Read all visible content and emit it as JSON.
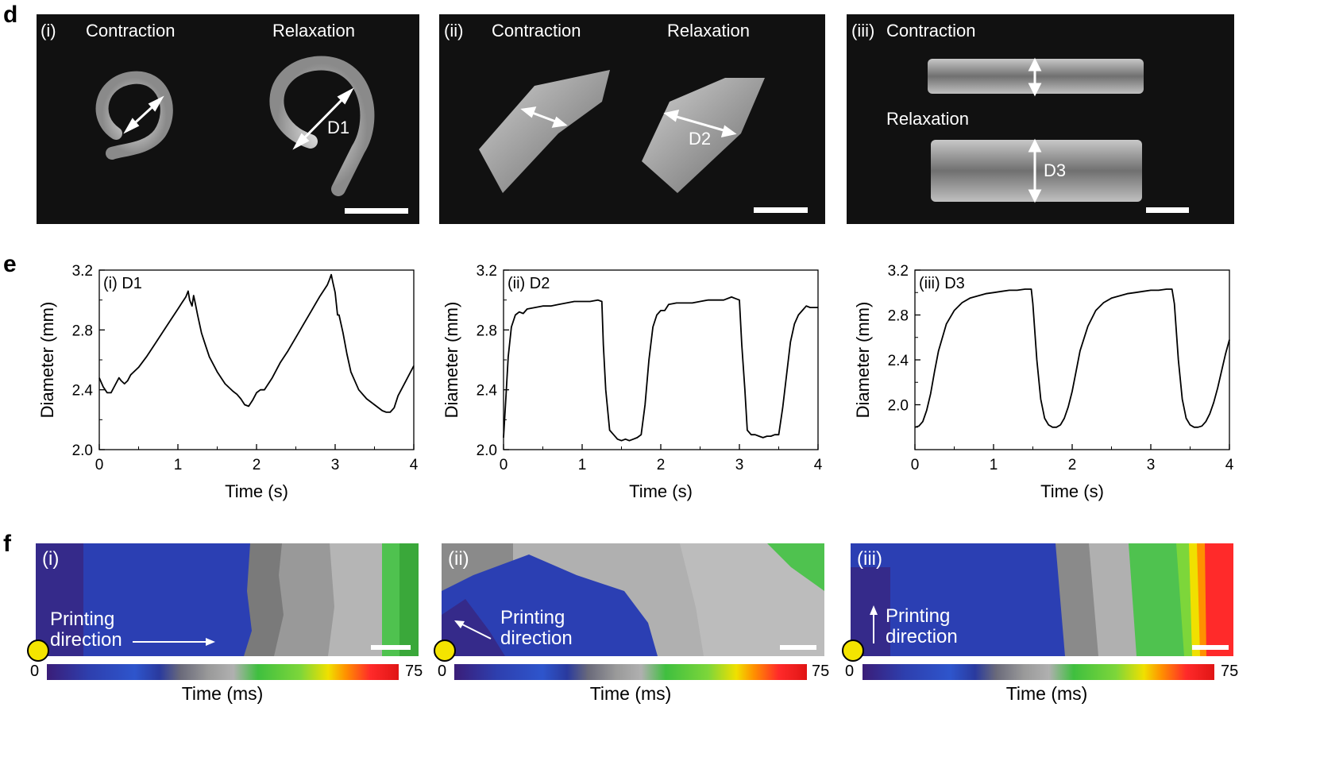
{
  "panel_letters": {
    "d": "d",
    "e": "e",
    "f": "f"
  },
  "panel_d": {
    "panels": [
      {
        "id": "(i)",
        "labels": [
          "Contraction",
          "Relaxation"
        ],
        "dim": "D1"
      },
      {
        "id": "(ii)",
        "labels": [
          "Contraction",
          "Relaxation"
        ],
        "dim": "D2"
      },
      {
        "id": "(iii)",
        "labels": [
          "Contraction",
          "Relaxation"
        ],
        "dim": "D3"
      }
    ]
  },
  "chart_data": [
    {
      "type": "line",
      "panel_label": "(i) D1",
      "xlabel": "Time (s)",
      "ylabel": "Diameter (mm)",
      "xlim": [
        0,
        4
      ],
      "ylim": [
        2.0,
        3.2
      ],
      "xticks": [
        "0",
        "1",
        "2",
        "3",
        "4"
      ],
      "yticks": [
        "2.0",
        "2.4",
        "2.8",
        "3.2"
      ],
      "x": [
        0,
        0.05,
        0.1,
        0.15,
        0.2,
        0.25,
        0.28,
        0.32,
        0.36,
        0.4,
        0.5,
        0.6,
        0.7,
        0.8,
        0.9,
        1.0,
        1.05,
        1.1,
        1.13,
        1.15,
        1.18,
        1.2,
        1.22,
        1.25,
        1.3,
        1.35,
        1.4,
        1.5,
        1.6,
        1.7,
        1.75,
        1.8,
        1.85,
        1.9,
        1.95,
        2.0,
        2.05,
        2.1,
        2.2,
        2.3,
        2.4,
        2.5,
        2.6,
        2.7,
        2.8,
        2.9,
        2.93,
        2.95,
        2.97,
        3.0,
        3.03,
        3.05,
        3.1,
        3.15,
        3.2,
        3.3,
        3.4,
        3.5,
        3.6,
        3.65,
        3.7,
        3.75,
        3.8,
        3.9,
        4.0
      ],
      "y": [
        2.48,
        2.42,
        2.38,
        2.38,
        2.43,
        2.48,
        2.46,
        2.44,
        2.46,
        2.5,
        2.55,
        2.62,
        2.7,
        2.78,
        2.86,
        2.94,
        2.98,
        3.02,
        3.06,
        3.0,
        2.96,
        3.03,
        2.98,
        2.9,
        2.78,
        2.7,
        2.62,
        2.52,
        2.44,
        2.39,
        2.37,
        2.34,
        2.3,
        2.29,
        2.33,
        2.38,
        2.4,
        2.4,
        2.48,
        2.58,
        2.66,
        2.75,
        2.84,
        2.93,
        3.02,
        3.1,
        3.14,
        3.17,
        3.12,
        3.05,
        2.9,
        2.9,
        2.78,
        2.64,
        2.52,
        2.4,
        2.34,
        2.3,
        2.26,
        2.25,
        2.25,
        2.28,
        2.36,
        2.46,
        2.56
      ]
    },
    {
      "type": "line",
      "panel_label": "(ii) D2",
      "xlabel": "Time (s)",
      "ylabel": "Diameter (mm)",
      "xlim": [
        0,
        4
      ],
      "ylim": [
        2.0,
        3.2
      ],
      "xticks": [
        "0",
        "1",
        "2",
        "3",
        "4"
      ],
      "yticks": [
        "2.0",
        "2.4",
        "2.8",
        "3.2"
      ],
      "x": [
        0,
        0.03,
        0.06,
        0.1,
        0.15,
        0.2,
        0.25,
        0.3,
        0.4,
        0.5,
        0.6,
        0.7,
        0.8,
        0.9,
        1.0,
        1.1,
        1.2,
        1.25,
        1.27,
        1.3,
        1.35,
        1.4,
        1.45,
        1.5,
        1.55,
        1.6,
        1.65,
        1.7,
        1.75,
        1.8,
        1.85,
        1.9,
        1.95,
        2.0,
        2.05,
        2.1,
        2.2,
        2.3,
        2.4,
        2.5,
        2.6,
        2.7,
        2.8,
        2.9,
        2.95,
        3.0,
        3.03,
        3.07,
        3.1,
        3.15,
        3.2,
        3.25,
        3.3,
        3.35,
        3.4,
        3.45,
        3.5,
        3.55,
        3.6,
        3.65,
        3.7,
        3.75,
        3.8,
        3.85,
        3.9,
        3.95,
        4.0
      ],
      "y": [
        2.08,
        2.35,
        2.62,
        2.82,
        2.9,
        2.92,
        2.91,
        2.94,
        2.95,
        2.96,
        2.96,
        2.97,
        2.98,
        2.99,
        2.99,
        2.99,
        3.0,
        2.99,
        2.7,
        2.4,
        2.13,
        2.1,
        2.07,
        2.06,
        2.07,
        2.06,
        2.07,
        2.08,
        2.1,
        2.3,
        2.6,
        2.82,
        2.9,
        2.93,
        2.93,
        2.97,
        2.98,
        2.98,
        2.98,
        2.99,
        3.0,
        3.0,
        3.0,
        3.02,
        3.01,
        3.0,
        2.7,
        2.4,
        2.13,
        2.1,
        2.1,
        2.09,
        2.08,
        2.09,
        2.09,
        2.1,
        2.1,
        2.28,
        2.5,
        2.72,
        2.84,
        2.9,
        2.93,
        2.96,
        2.95,
        2.95,
        2.95
      ]
    },
    {
      "type": "line",
      "panel_label": "(iii) D3",
      "xlabel": "Time (s)",
      "ylabel": "Diameter (mm)",
      "xlim": [
        0,
        4
      ],
      "ylim": [
        1.6,
        3.2
      ],
      "xticks": [
        "0",
        "1",
        "2",
        "3",
        "4"
      ],
      "yticks": [
        "2.0",
        "2.4",
        "2.8",
        "3.2"
      ],
      "x": [
        0,
        0.05,
        0.1,
        0.15,
        0.2,
        0.25,
        0.3,
        0.4,
        0.5,
        0.6,
        0.7,
        0.8,
        0.9,
        1.0,
        1.1,
        1.2,
        1.3,
        1.4,
        1.45,
        1.48,
        1.5,
        1.55,
        1.6,
        1.65,
        1.7,
        1.75,
        1.8,
        1.85,
        1.9,
        1.95,
        2.0,
        2.05,
        2.1,
        2.2,
        2.3,
        2.4,
        2.5,
        2.6,
        2.7,
        2.8,
        2.9,
        3.0,
        3.1,
        3.2,
        3.25,
        3.27,
        3.3,
        3.35,
        3.4,
        3.45,
        3.5,
        3.55,
        3.6,
        3.65,
        3.7,
        3.75,
        3.8,
        3.85,
        3.9,
        3.95,
        4.0
      ],
      "y": [
        1.8,
        1.81,
        1.85,
        1.95,
        2.1,
        2.3,
        2.48,
        2.72,
        2.84,
        2.91,
        2.95,
        2.97,
        2.99,
        3.0,
        3.01,
        3.02,
        3.02,
        3.03,
        3.03,
        3.03,
        2.9,
        2.4,
        2.05,
        1.88,
        1.82,
        1.8,
        1.8,
        1.82,
        1.88,
        1.98,
        2.12,
        2.3,
        2.48,
        2.7,
        2.84,
        2.91,
        2.95,
        2.97,
        2.99,
        3.0,
        3.01,
        3.02,
        3.02,
        3.03,
        3.03,
        3.03,
        2.9,
        2.4,
        2.05,
        1.88,
        1.82,
        1.8,
        1.8,
        1.81,
        1.85,
        1.92,
        2.02,
        2.15,
        2.3,
        2.45,
        2.58
      ]
    }
  ],
  "panel_f": {
    "panels": [
      {
        "id": "(i)",
        "label_line1": "Printing",
        "label_line2": "direction"
      },
      {
        "id": "(ii)",
        "label_line1": "Printing",
        "label_line2": "direction"
      },
      {
        "id": "(iii)",
        "label_line1": "Printing",
        "label_line2": "direction"
      }
    ],
    "colorbar": {
      "min": "0",
      "max": "75",
      "title": "Time (ms)"
    }
  }
}
